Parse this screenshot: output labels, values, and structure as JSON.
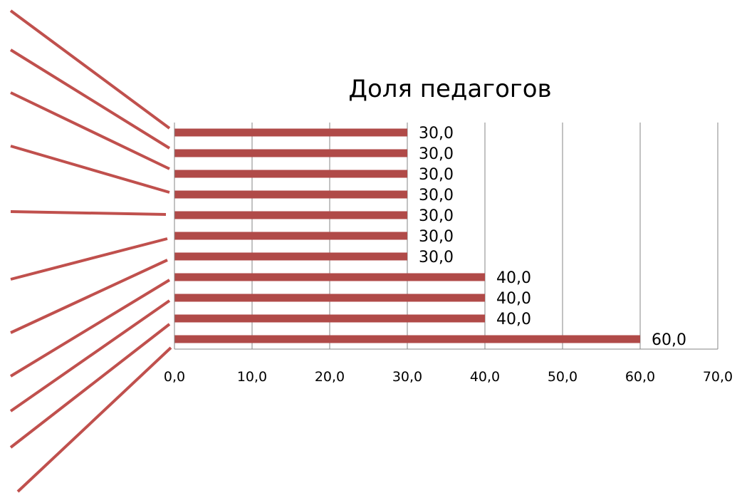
{
  "chart_data": {
    "type": "bar",
    "orientation": "horizontal",
    "title": "Доля педагогов",
    "xlabel": "",
    "ylabel": "",
    "xlim": [
      0,
      70
    ],
    "x_ticks": [
      "0,0",
      "10,0",
      "20,0",
      "30,0",
      "40,0",
      "50,0",
      "60,0",
      "70,0"
    ],
    "values": [
      30.0,
      30.0,
      30.0,
      30.0,
      30.0,
      30.0,
      30.0,
      40.0,
      40.0,
      40.0,
      60.0
    ],
    "value_labels": [
      "30,0",
      "30,0",
      "30,0",
      "30,0",
      "30,0",
      "30,0",
      "30,0",
      "40,0",
      "40,0",
      "40,0",
      "60,0"
    ],
    "category_labels_visible": false,
    "grid": "vertical",
    "legend": "none",
    "bar_color": "#B04A48",
    "leader_line_color": "#C0504D",
    "grid_color": "#868686"
  }
}
